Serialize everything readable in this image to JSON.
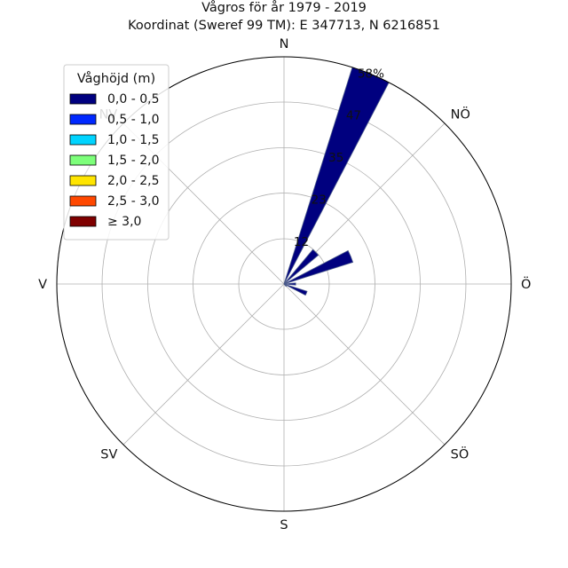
{
  "chart_data": {
    "type": "polar-bar",
    "title": "Vågros för år 1979 - 2019",
    "subtitle": "Koordinat (Sweref 99 TM): E 347713, N 6216851",
    "directions": [
      "N",
      "NÖ",
      "Ö",
      "SÖ",
      "S",
      "SV",
      "V",
      "NV"
    ],
    "radial_ticks": [
      "12",
      "23",
      "35",
      "47",
      "58%"
    ],
    "radial_tick_values": [
      11.6,
      23.3,
      34.9,
      46.6,
      58.2
    ],
    "radial_max": 58.2,
    "legend_title": "Våghöjd (m)",
    "legend_position": "upper-left",
    "grid": true,
    "series": [
      {
        "name": "0,0 - 0,5",
        "color": "#00007f"
      },
      {
        "name": "0,5 - 1,0",
        "color": "#0028ff"
      },
      {
        "name": "1,0 - 1,5",
        "color": "#00d4ff"
      },
      {
        "name": "1,5 - 2,0",
        "color": "#7dff7a"
      },
      {
        "name": "2,0 - 2,5",
        "color": "#ffe500"
      },
      {
        "name": "2,5 - 3,0",
        "color": "#ff4800"
      },
      {
        "name": "≥ 3,0",
        "color": "#7f0000"
      }
    ],
    "sectors": [
      {
        "direction_deg": 22.5,
        "width_deg": 10,
        "values": [
          58.2,
          0,
          0,
          0,
          0,
          0,
          0
        ]
      },
      {
        "direction_deg": 45,
        "width_deg": 10,
        "values": [
          11.5,
          0,
          0,
          0,
          0,
          0,
          0
        ]
      },
      {
        "direction_deg": 67.5,
        "width_deg": 10,
        "values": [
          18.5,
          0,
          0,
          0,
          0,
          0,
          0
        ]
      },
      {
        "direction_deg": 90,
        "width_deg": 10,
        "values": [
          3.0,
          0,
          0,
          0,
          0,
          0,
          0
        ]
      },
      {
        "direction_deg": 112.5,
        "width_deg": 10,
        "values": [
          6.2,
          0,
          0,
          0,
          0,
          0,
          0
        ]
      },
      {
        "direction_deg": 135,
        "width_deg": 10,
        "values": [
          0.8,
          0,
          0,
          0,
          0,
          0,
          0
        ]
      }
    ]
  }
}
